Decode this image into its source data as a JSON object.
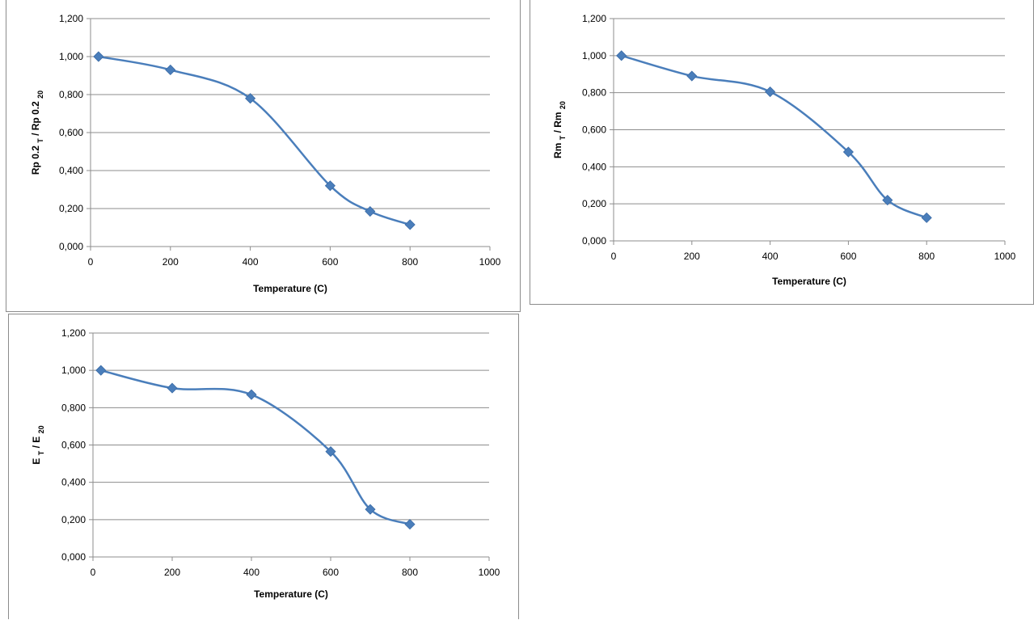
{
  "chart_data": [
    {
      "type": "line",
      "smooth": true,
      "xlabel": "Temperature (C)",
      "ylabel": "Rp 0.2 T / Rp 0.2 20",
      "ylabel_parts": [
        {
          "text": "Rp 0.2 ",
          "sub": false
        },
        {
          "text": "T",
          "sub": true
        },
        {
          "text": " / Rp 0.2 ",
          "sub": false
        },
        {
          "text": "20",
          "sub": true
        }
      ],
      "xlim": [
        0,
        1000
      ],
      "ylim": [
        0,
        1.2
      ],
      "xticks": [
        "0",
        "200",
        "400",
        "600",
        "800",
        "1000"
      ],
      "yticks": [
        "0,000",
        "0,200",
        "0,400",
        "0,600",
        "0,800",
        "1,000",
        "1,200"
      ],
      "grid": "horizontal",
      "color": "#4a7ebb",
      "x": [
        20,
        200,
        400,
        600,
        700,
        800
      ],
      "y": [
        1.0,
        0.93,
        0.78,
        0.32,
        0.185,
        0.115
      ]
    },
    {
      "type": "line",
      "smooth": true,
      "xlabel": "Temperature (C)",
      "ylabel": "Rm T / Rm 20",
      "ylabel_parts": [
        {
          "text": "Rm ",
          "sub": false
        },
        {
          "text": "T",
          "sub": true
        },
        {
          "text": " / Rm ",
          "sub": false
        },
        {
          "text": "20",
          "sub": true
        }
      ],
      "xlim": [
        0,
        1000
      ],
      "ylim": [
        0,
        1.2
      ],
      "xticks": [
        "0",
        "200",
        "400",
        "600",
        "800",
        "1000"
      ],
      "yticks": [
        "0,000",
        "0,200",
        "0,400",
        "0,600",
        "0,800",
        "1,000",
        "1,200"
      ],
      "grid": "horizontal",
      "color": "#4a7ebb",
      "x": [
        20,
        200,
        400,
        600,
        700,
        800
      ],
      "y": [
        1.0,
        0.89,
        0.805,
        0.48,
        0.22,
        0.125
      ]
    },
    {
      "type": "line",
      "smooth": true,
      "xlabel": "Temperature (C)",
      "ylabel": "E T / E 20",
      "ylabel_parts": [
        {
          "text": "E ",
          "sub": false
        },
        {
          "text": "T",
          "sub": true
        },
        {
          "text": " / E ",
          "sub": false
        },
        {
          "text": "20",
          "sub": true
        }
      ],
      "xlim": [
        0,
        1000
      ],
      "ylim": [
        0,
        1.2
      ],
      "xticks": [
        "0",
        "200",
        "400",
        "600",
        "800",
        "1000"
      ],
      "yticks": [
        "0,000",
        "0,200",
        "0,400",
        "0,600",
        "0,800",
        "1,000",
        "1,200"
      ],
      "grid": "horizontal",
      "color": "#4a7ebb",
      "x": [
        20,
        200,
        400,
        600,
        700,
        800
      ],
      "y": [
        1.0,
        0.905,
        0.87,
        0.565,
        0.255,
        0.175
      ]
    }
  ]
}
